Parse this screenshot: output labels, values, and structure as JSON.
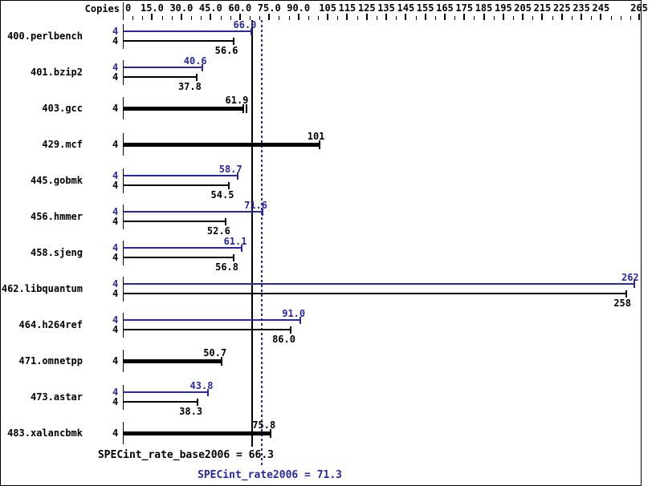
{
  "chart_data": {
    "type": "bar",
    "orientation": "horizontal",
    "copies_header": "Copies",
    "axis": {
      "min": 0,
      "max": 265,
      "minor_tick_step": 5,
      "tick_labels": [
        {
          "v": 0,
          "t": "0"
        },
        {
          "v": 15,
          "t": "15.0"
        },
        {
          "v": 30,
          "t": "30.0"
        },
        {
          "v": 45,
          "t": "45.0"
        },
        {
          "v": 60,
          "t": "60.0"
        },
        {
          "v": 75,
          "t": "75.0"
        },
        {
          "v": 90,
          "t": "90.0"
        },
        {
          "v": 105,
          "t": "105"
        },
        {
          "v": 115,
          "t": "115"
        },
        {
          "v": 125,
          "t": "125"
        },
        {
          "v": 135,
          "t": "135"
        },
        {
          "v": 145,
          "t": "145"
        },
        {
          "v": 155,
          "t": "155"
        },
        {
          "v": 165,
          "t": "165"
        },
        {
          "v": 175,
          "t": "175"
        },
        {
          "v": 185,
          "t": "185"
        },
        {
          "v": 195,
          "t": "195"
        },
        {
          "v": 205,
          "t": "205"
        },
        {
          "v": 215,
          "t": "215"
        },
        {
          "v": 225,
          "t": "225"
        },
        {
          "v": 235,
          "t": "235"
        },
        {
          "v": 245,
          "t": "245"
        },
        {
          "v": 265,
          "t": "265"
        }
      ]
    },
    "benchmarks": [
      {
        "name": "400.perlbench",
        "copies": 4,
        "style": "double",
        "peak": 66.0,
        "peak_label": "66.0",
        "base": 56.6,
        "base_label": "56.6"
      },
      {
        "name": "401.bzip2",
        "copies": 4,
        "style": "double",
        "peak": 40.6,
        "peak_label": "40.6",
        "base": 37.8,
        "base_label": "37.8"
      },
      {
        "name": "403.gcc",
        "copies": 4,
        "style": "single",
        "double_cap": true,
        "base": 61.9,
        "base_label": "61.9"
      },
      {
        "name": "429.mcf",
        "copies": 4,
        "style": "single",
        "double_cap": false,
        "base": 101,
        "base_label": "101"
      },
      {
        "name": "445.gobmk",
        "copies": 4,
        "style": "double",
        "peak": 58.7,
        "peak_label": "58.7",
        "base": 54.5,
        "base_label": "54.5"
      },
      {
        "name": "456.hmmer",
        "copies": 4,
        "style": "double",
        "peak": 71.6,
        "peak_label": "71.6",
        "base": 52.6,
        "base_label": "52.6"
      },
      {
        "name": "458.sjeng",
        "copies": 4,
        "style": "double",
        "peak": 61.1,
        "peak_label": "61.1",
        "base": 56.8,
        "base_label": "56.8"
      },
      {
        "name": "462.libquantum",
        "copies": 4,
        "style": "double",
        "peak": 262,
        "peak_label": "262",
        "base": 258,
        "base_label": "258"
      },
      {
        "name": "464.h264ref",
        "copies": 4,
        "style": "double",
        "peak": 91.0,
        "peak_label": "91.0",
        "base": 86.0,
        "base_label": "86.0"
      },
      {
        "name": "471.omnetpp",
        "copies": 4,
        "style": "single",
        "double_cap": false,
        "base": 50.7,
        "base_label": "50.7"
      },
      {
        "name": "473.astar",
        "copies": 4,
        "style": "double",
        "peak": 43.8,
        "peak_label": "43.8",
        "base": 38.3,
        "base_label": "38.3"
      },
      {
        "name": "483.xalancbmk",
        "copies": 4,
        "style": "single",
        "double_cap": false,
        "base": 75.8,
        "base_label": "75.8"
      }
    ],
    "summary": {
      "base": {
        "text": "SPECint_rate_base2006 = 66.3",
        "value": 66.3
      },
      "peak": {
        "text": "SPECint_rate2006 = 71.3",
        "value": 71.3
      }
    },
    "colors": {
      "base": "#000000",
      "peak": "#2828a0",
      "background": "#ffffff"
    }
  }
}
